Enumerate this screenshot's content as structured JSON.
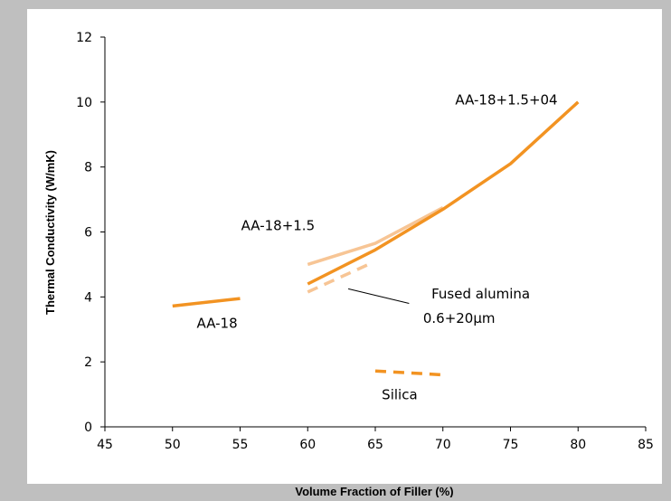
{
  "colors": {
    "page_background": "#bfbfbf",
    "plot_background": "#ffffff",
    "series_orange": "#f29322",
    "series_light": "#f7c595"
  },
  "chart_data": {
    "type": "line",
    "title": "",
    "xlabel": "Volume Fraction of Filler (%)",
    "ylabel": "Thermal Conductivity (W/mK)",
    "xlim": [
      45,
      85
    ],
    "ylim": [
      0,
      12
    ],
    "xticks": [
      45,
      50,
      55,
      60,
      65,
      70,
      75,
      80,
      85
    ],
    "yticks": [
      0,
      2,
      4,
      6,
      8,
      10,
      12
    ],
    "grid": false,
    "legend": "none",
    "series": [
      {
        "label": "AA-18",
        "style": "solid",
        "color": "#f29322",
        "points": [
          [
            50,
            3.72
          ],
          [
            55,
            3.95
          ]
        ]
      },
      {
        "label": "AA-18+1.5",
        "style": "solid",
        "color": "#f7c595",
        "points": [
          [
            60,
            5.0
          ],
          [
            65,
            5.65
          ],
          [
            70,
            6.75
          ]
        ]
      },
      {
        "label": "AA-18+1.5+04",
        "style": "solid",
        "color": "#f29322",
        "points": [
          [
            60,
            4.4
          ],
          [
            65,
            5.45
          ],
          [
            70,
            6.7
          ],
          [
            75,
            8.1
          ],
          [
            80,
            10.0
          ]
        ]
      },
      {
        "label": "Fused alumina 0.6+20μm",
        "style": "dashed",
        "color": "#f7c595",
        "points": [
          [
            60,
            4.15
          ],
          [
            64.5,
            5.0
          ]
        ]
      },
      {
        "label": "Silica",
        "style": "dashed",
        "color": "#f29322",
        "points": [
          [
            65,
            1.72
          ],
          [
            70,
            1.6
          ]
        ]
      }
    ],
    "annotations": [
      {
        "text": "AA-18+1.5+04",
        "at": [
          74.7,
          9.92
        ]
      },
      {
        "text": "AA-18+1.5",
        "at": [
          57.8,
          6.05
        ]
      },
      {
        "text": "AA-18",
        "at": [
          53.3,
          3.05
        ]
      },
      {
        "text": "Fused alumina",
        "at": [
          72.8,
          3.95
        ]
      },
      {
        "text": "0.6+20μm",
        "at": [
          71.2,
          3.2
        ]
      },
      {
        "text": "Silica",
        "at": [
          66.8,
          0.85
        ]
      }
    ],
    "pointer": {
      "from": [
        63.0,
        4.25
      ],
      "to": [
        67.5,
        3.8
      ]
    }
  }
}
